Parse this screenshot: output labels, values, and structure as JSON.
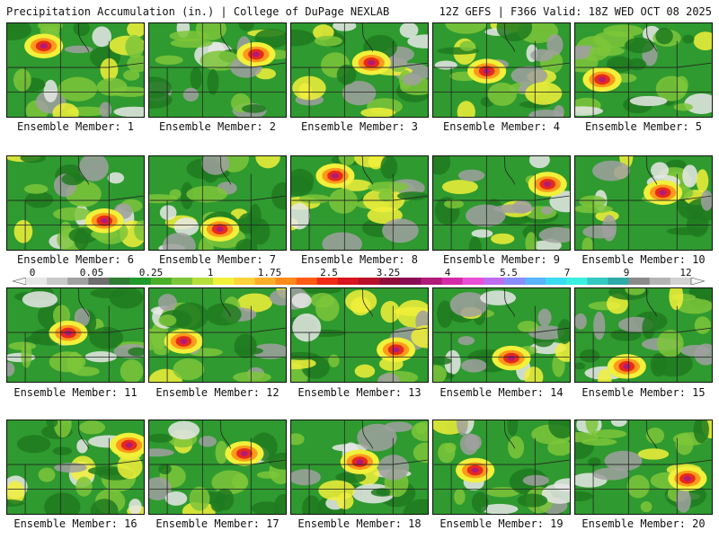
{
  "header": {
    "left_title": "Precipitation Accumulation (in.) | College of DuPage NEXLAB",
    "right_title": "12Z GEFS | F366 Valid: 18Z WED OCT 08 2025"
  },
  "panels": [
    {
      "label": "Ensemble Member: 1"
    },
    {
      "label": "Ensemble Member: 2"
    },
    {
      "label": "Ensemble Member: 3"
    },
    {
      "label": "Ensemble Member: 4"
    },
    {
      "label": "Ensemble Member: 5"
    },
    {
      "label": "Ensemble Member: 6"
    },
    {
      "label": "Ensemble Member: 7"
    },
    {
      "label": "Ensemble Member: 8"
    },
    {
      "label": "Ensemble Member: 9"
    },
    {
      "label": "Ensemble Member: 10"
    },
    {
      "label": "Ensemble Member: 11"
    },
    {
      "label": "Ensemble Member: 12"
    },
    {
      "label": "Ensemble Member: 13"
    },
    {
      "label": "Ensemble Member: 14"
    },
    {
      "label": "Ensemble Member: 15"
    },
    {
      "label": "Ensemble Member: 16"
    },
    {
      "label": "Ensemble Member: 17"
    },
    {
      "label": "Ensemble Member: 18"
    },
    {
      "label": "Ensemble Member: 19"
    },
    {
      "label": "Ensemble Member: 20"
    }
  ],
  "colorbar": {
    "labels": [
      "0",
      "0.05",
      "0.25",
      "1",
      "1.75",
      "2.5",
      "3.25",
      "4",
      "5.5",
      "7",
      "9",
      "12"
    ],
    "colors": [
      "#e6e6e6",
      "#c8c8c8",
      "#a0a0a0",
      "#6e6e6e",
      "#2e7d32",
      "#1f9a2b",
      "#4caf2a",
      "#7cc53a",
      "#b6de3a",
      "#f1f03a",
      "#ffd23a",
      "#ffae2a",
      "#ff8a1a",
      "#ff5a14",
      "#f02a14",
      "#d8141e",
      "#b80f2a",
      "#900c3a",
      "#8a0a55",
      "#b01a7a",
      "#d62aa8",
      "#e84fd6",
      "#c06cf0",
      "#8a8cff",
      "#5ab4ff",
      "#3adcf0",
      "#3af0e0",
      "#34c8c0",
      "#2fa8a8",
      "#8a8a8a",
      "#b4b4b4",
      "#d2d2d2"
    ]
  },
  "palette": {
    "green_dark": "#1e7a1e",
    "green": "#2f9a2f",
    "green_light": "#7cc53a",
    "yellow": "#f1f03a",
    "orange": "#ff9a1a",
    "red": "#e82a1a",
    "magenta": "#b01a7a",
    "grey": "#a0a0a0",
    "white": "#e8e8e8"
  }
}
